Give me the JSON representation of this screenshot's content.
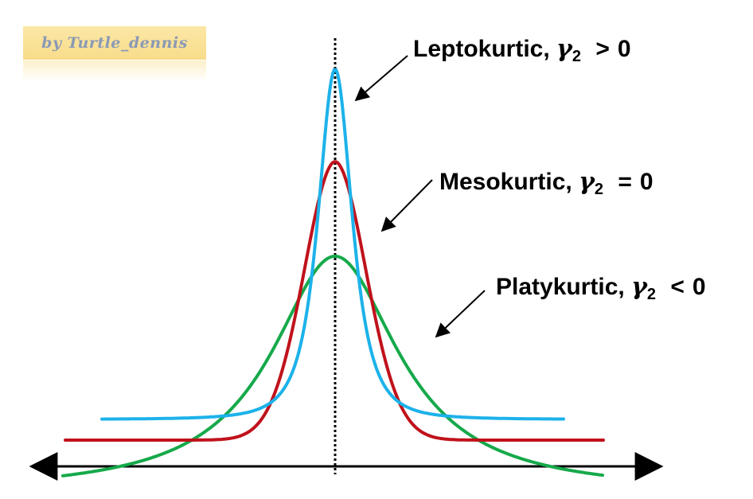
{
  "watermark": {
    "text": "by Turtle_dennis"
  },
  "labels": {
    "leptokurtic": {
      "name": "Leptokurtic,",
      "symbol": "γ",
      "subscript": "2",
      "relation": ">",
      "value": "0"
    },
    "mesokurtic": {
      "name": "Mesokurtic,",
      "symbol": "γ",
      "subscript": "2",
      "relation": "=",
      "value": "0"
    },
    "platykurtic": {
      "name": "Platykurtic,",
      "symbol": "γ",
      "subscript": "2",
      "relation": "<",
      "value": "0"
    }
  },
  "colors": {
    "leptokurtic_curve": "#1cb2ea",
    "mesokurtic_curve": "#c0121b",
    "platykurtic_curve": "#16a94a",
    "axis": "#000000",
    "center_line": "#000000",
    "watermark_bg": "#fbe3a0",
    "watermark_text": "#8a99b6"
  }
}
